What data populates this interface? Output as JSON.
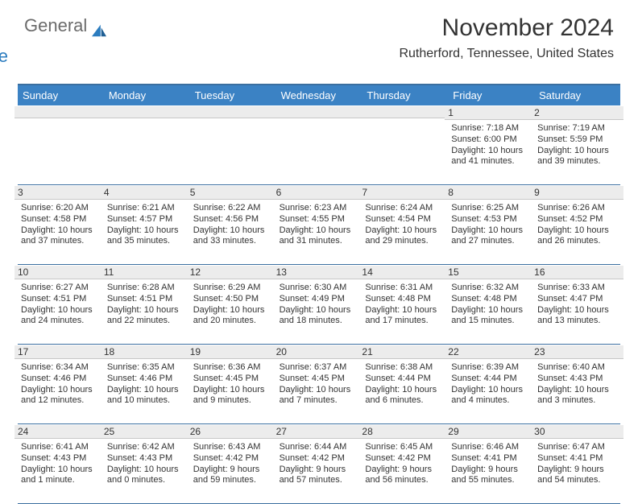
{
  "brand": {
    "line1": "General",
    "line2": "Blue"
  },
  "title": "November 2024",
  "subtitle": "Rutherford, Tennessee, United States",
  "colors": {
    "header_bg": "#3b82c4",
    "header_text": "#ffffff",
    "grid_border": "#3b6fa0",
    "shade_bg": "#ececec",
    "text": "#333333",
    "logo_gray": "#6b6b6b",
    "logo_blue": "#2b7cbf"
  },
  "day_names": [
    "Sunday",
    "Monday",
    "Tuesday",
    "Wednesday",
    "Thursday",
    "Friday",
    "Saturday"
  ],
  "weeks": [
    [
      {
        "empty": true
      },
      {
        "empty": true
      },
      {
        "empty": true
      },
      {
        "empty": true
      },
      {
        "empty": true
      },
      {
        "num": "1",
        "sunrise": "Sunrise: 7:18 AM",
        "sunset": "Sunset: 6:00 PM",
        "daylight": "Daylight: 10 hours and 41 minutes."
      },
      {
        "num": "2",
        "sunrise": "Sunrise: 7:19 AM",
        "sunset": "Sunset: 5:59 PM",
        "daylight": "Daylight: 10 hours and 39 minutes."
      }
    ],
    [
      {
        "num": "3",
        "sunrise": "Sunrise: 6:20 AM",
        "sunset": "Sunset: 4:58 PM",
        "daylight": "Daylight: 10 hours and 37 minutes."
      },
      {
        "num": "4",
        "sunrise": "Sunrise: 6:21 AM",
        "sunset": "Sunset: 4:57 PM",
        "daylight": "Daylight: 10 hours and 35 minutes."
      },
      {
        "num": "5",
        "sunrise": "Sunrise: 6:22 AM",
        "sunset": "Sunset: 4:56 PM",
        "daylight": "Daylight: 10 hours and 33 minutes."
      },
      {
        "num": "6",
        "sunrise": "Sunrise: 6:23 AM",
        "sunset": "Sunset: 4:55 PM",
        "daylight": "Daylight: 10 hours and 31 minutes."
      },
      {
        "num": "7",
        "sunrise": "Sunrise: 6:24 AM",
        "sunset": "Sunset: 4:54 PM",
        "daylight": "Daylight: 10 hours and 29 minutes."
      },
      {
        "num": "8",
        "sunrise": "Sunrise: 6:25 AM",
        "sunset": "Sunset: 4:53 PM",
        "daylight": "Daylight: 10 hours and 27 minutes."
      },
      {
        "num": "9",
        "sunrise": "Sunrise: 6:26 AM",
        "sunset": "Sunset: 4:52 PM",
        "daylight": "Daylight: 10 hours and 26 minutes."
      }
    ],
    [
      {
        "num": "10",
        "sunrise": "Sunrise: 6:27 AM",
        "sunset": "Sunset: 4:51 PM",
        "daylight": "Daylight: 10 hours and 24 minutes."
      },
      {
        "num": "11",
        "sunrise": "Sunrise: 6:28 AM",
        "sunset": "Sunset: 4:51 PM",
        "daylight": "Daylight: 10 hours and 22 minutes."
      },
      {
        "num": "12",
        "sunrise": "Sunrise: 6:29 AM",
        "sunset": "Sunset: 4:50 PM",
        "daylight": "Daylight: 10 hours and 20 minutes."
      },
      {
        "num": "13",
        "sunrise": "Sunrise: 6:30 AM",
        "sunset": "Sunset: 4:49 PM",
        "daylight": "Daylight: 10 hours and 18 minutes."
      },
      {
        "num": "14",
        "sunrise": "Sunrise: 6:31 AM",
        "sunset": "Sunset: 4:48 PM",
        "daylight": "Daylight: 10 hours and 17 minutes."
      },
      {
        "num": "15",
        "sunrise": "Sunrise: 6:32 AM",
        "sunset": "Sunset: 4:48 PM",
        "daylight": "Daylight: 10 hours and 15 minutes."
      },
      {
        "num": "16",
        "sunrise": "Sunrise: 6:33 AM",
        "sunset": "Sunset: 4:47 PM",
        "daylight": "Daylight: 10 hours and 13 minutes."
      }
    ],
    [
      {
        "num": "17",
        "sunrise": "Sunrise: 6:34 AM",
        "sunset": "Sunset: 4:46 PM",
        "daylight": "Daylight: 10 hours and 12 minutes."
      },
      {
        "num": "18",
        "sunrise": "Sunrise: 6:35 AM",
        "sunset": "Sunset: 4:46 PM",
        "daylight": "Daylight: 10 hours and 10 minutes."
      },
      {
        "num": "19",
        "sunrise": "Sunrise: 6:36 AM",
        "sunset": "Sunset: 4:45 PM",
        "daylight": "Daylight: 10 hours and 9 minutes."
      },
      {
        "num": "20",
        "sunrise": "Sunrise: 6:37 AM",
        "sunset": "Sunset: 4:45 PM",
        "daylight": "Daylight: 10 hours and 7 minutes."
      },
      {
        "num": "21",
        "sunrise": "Sunrise: 6:38 AM",
        "sunset": "Sunset: 4:44 PM",
        "daylight": "Daylight: 10 hours and 6 minutes."
      },
      {
        "num": "22",
        "sunrise": "Sunrise: 6:39 AM",
        "sunset": "Sunset: 4:44 PM",
        "daylight": "Daylight: 10 hours and 4 minutes."
      },
      {
        "num": "23",
        "sunrise": "Sunrise: 6:40 AM",
        "sunset": "Sunset: 4:43 PM",
        "daylight": "Daylight: 10 hours and 3 minutes."
      }
    ],
    [
      {
        "num": "24",
        "sunrise": "Sunrise: 6:41 AM",
        "sunset": "Sunset: 4:43 PM",
        "daylight": "Daylight: 10 hours and 1 minute."
      },
      {
        "num": "25",
        "sunrise": "Sunrise: 6:42 AM",
        "sunset": "Sunset: 4:43 PM",
        "daylight": "Daylight: 10 hours and 0 minutes."
      },
      {
        "num": "26",
        "sunrise": "Sunrise: 6:43 AM",
        "sunset": "Sunset: 4:42 PM",
        "daylight": "Daylight: 9 hours and 59 minutes."
      },
      {
        "num": "27",
        "sunrise": "Sunrise: 6:44 AM",
        "sunset": "Sunset: 4:42 PM",
        "daylight": "Daylight: 9 hours and 57 minutes."
      },
      {
        "num": "28",
        "sunrise": "Sunrise: 6:45 AM",
        "sunset": "Sunset: 4:42 PM",
        "daylight": "Daylight: 9 hours and 56 minutes."
      },
      {
        "num": "29",
        "sunrise": "Sunrise: 6:46 AM",
        "sunset": "Sunset: 4:41 PM",
        "daylight": "Daylight: 9 hours and 55 minutes."
      },
      {
        "num": "30",
        "sunrise": "Sunrise: 6:47 AM",
        "sunset": "Sunset: 4:41 PM",
        "daylight": "Daylight: 9 hours and 54 minutes."
      }
    ]
  ]
}
